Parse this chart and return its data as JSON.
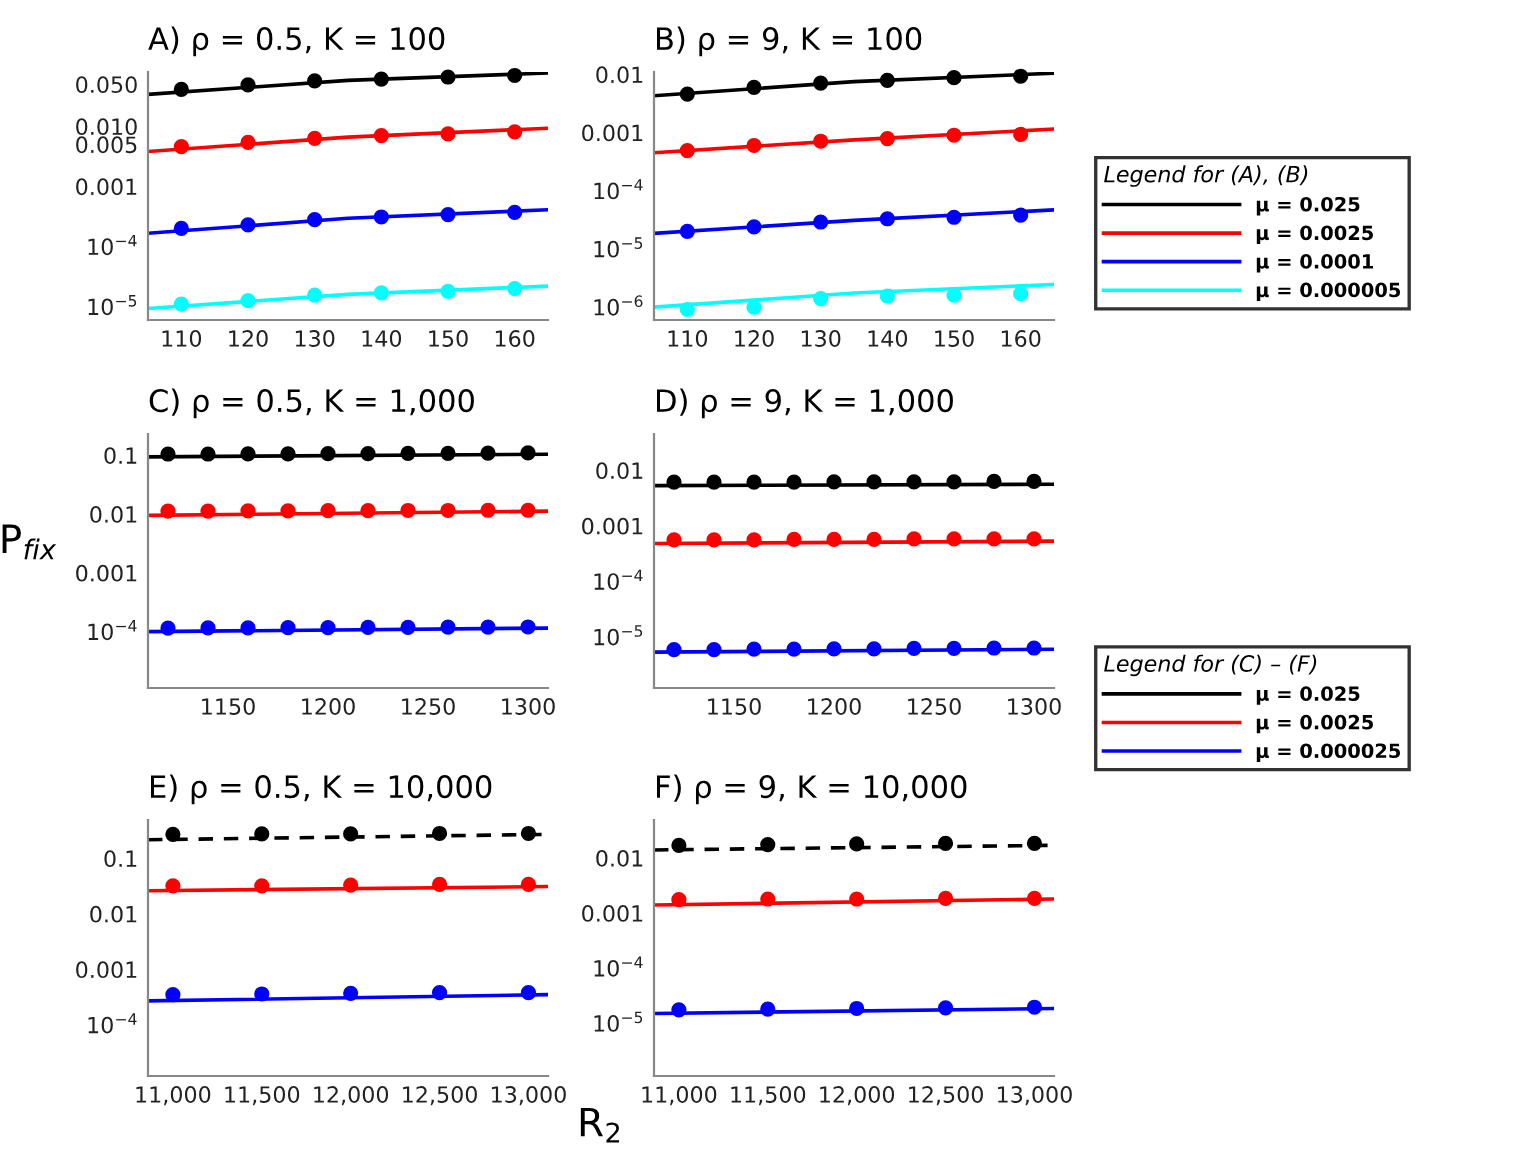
{
  "chart_data": [
    {
      "type": "line",
      "title": "A) ρ = 0.5, K = 100",
      "log": "y",
      "grid": false,
      "legend": false,
      "x": [
        110,
        120,
        130,
        140,
        150,
        160
      ],
      "xlim": [
        105,
        165
      ],
      "xticks": [
        110,
        120,
        130,
        140,
        150,
        160
      ],
      "ylim": [
        6e-06,
        0.08
      ],
      "yticks": [
        {
          "value": 0.05,
          "label": "0.050"
        },
        {
          "value": 0.01,
          "label": "0.010"
        },
        {
          "value": 0.005,
          "label": "0.005"
        },
        {
          "value": 0.001,
          "label": "0.001"
        },
        {
          "value": 0.0001,
          "label": "10$^{−4}$"
        },
        {
          "value": 1e-05,
          "label": "10$^{−5}$"
        }
      ],
      "series": [
        {
          "type": "scatter",
          "marker": "circle",
          "color": "#000000",
          "values": [
            0.041,
            0.049,
            0.057,
            0.061,
            0.066,
            0.07
          ]
        },
        {
          "color": "#000000",
          "x": [
            105,
            135,
            165
          ],
          "values": [
            0.034,
            0.058,
            0.077
          ]
        },
        {
          "type": "scatter",
          "marker": "circle",
          "color": "#ff0000",
          "values": [
            0.0046,
            0.0054,
            0.0063,
            0.007,
            0.0075,
            0.0081
          ]
        },
        {
          "color": "#ff0000",
          "x": [
            105,
            135,
            165
          ],
          "values": [
            0.0038,
            0.0066,
            0.0093
          ]
        },
        {
          "type": "scatter",
          "marker": "circle",
          "color": "#0000ff",
          "values": [
            0.0002,
            0.00023,
            0.00028,
            0.00031,
            0.00034,
            0.00037
          ]
        },
        {
          "color": "#0000ff",
          "x": [
            105,
            135,
            165
          ],
          "values": [
            0.000166,
            0.000295,
            0.00041
          ]
        },
        {
          "type": "scatter",
          "marker": "circle",
          "color": "#00ffff",
          "values": [
            1.1e-05,
            1.26e-05,
            1.55e-05,
            1.7e-05,
            1.8e-05,
            2e-05
          ]
        },
        {
          "color": "#00ffff",
          "x": [
            105,
            135,
            165
          ],
          "values": [
            9.3e-06,
            1.6e-05,
            2.2e-05
          ]
        }
      ]
    },
    {
      "type": "line",
      "title": "B) ρ = 9, K = 100",
      "log": "y",
      "grid": false,
      "legend": "right",
      "legend_title": "Legend for (A), (B)",
      "x": [
        110,
        120,
        130,
        140,
        150,
        160
      ],
      "xlim": [
        105,
        165
      ],
      "xticks": [
        110,
        120,
        130,
        140,
        150,
        160
      ],
      "ylim": [
        6e-07,
        0.011
      ],
      "yticks": [
        {
          "value": 0.01,
          "label": "0.01"
        },
        {
          "value": 0.001,
          "label": "0.001"
        },
        {
          "value": 0.0001,
          "label": "10$^{−4}$"
        },
        {
          "value": 1e-05,
          "label": "10$^{−5}$"
        },
        {
          "value": 1e-06,
          "label": "10$^{−6}$"
        }
      ],
      "series": [
        {
          "type": "scatter",
          "marker": "circle",
          "color": "#000000",
          "values": [
            0.0046,
            0.006,
            0.0071,
            0.0079,
            0.0088,
            0.0093
          ]
        },
        {
          "name": "μ = 0.025",
          "color": "#000000",
          "x": [
            105,
            135,
            165
          ],
          "values": [
            0.0043,
            0.0075,
            0.0105
          ]
        },
        {
          "type": "scatter",
          "marker": "circle",
          "color": "#ff0000",
          "values": [
            0.00049,
            0.0006,
            0.00071,
            0.00079,
            0.0009,
            0.00093
          ]
        },
        {
          "name": "μ = 0.0025",
          "color": "#ff0000",
          "x": [
            105,
            135,
            165
          ],
          "values": [
            0.00045,
            0.00075,
            0.00115
          ]
        },
        {
          "type": "scatter",
          "marker": "circle",
          "color": "#0000ff",
          "values": [
            2e-05,
            2.4e-05,
            2.9e-05,
            3.3e-05,
            3.5e-05,
            3.8e-05
          ]
        },
        {
          "name": "μ = 0.0001",
          "color": "#0000ff",
          "x": [
            105,
            135,
            165
          ],
          "values": [
            1.85e-05,
            3.1e-05,
            4.7e-05
          ]
        },
        {
          "type": "scatter",
          "marker": "circle",
          "color": "#00ffff",
          "values": [
            9.1e-07,
            1e-06,
            1.4e-06,
            1.55e-06,
            1.6e-06,
            1.7e-06
          ]
        },
        {
          "name": "μ = 0.000005",
          "color": "#00ffff",
          "x": [
            105,
            135,
            165
          ],
          "values": [
            1e-06,
            1.75e-06,
            2.45e-06
          ]
        }
      ]
    },
    {
      "type": "line",
      "title": "C) ρ = 0.5, K = 1,000",
      "ylabel": "P$_{fix}$",
      "log": "y",
      "grid": false,
      "legend": false,
      "x": [
        1120,
        1140,
        1160,
        1180,
        1200,
        1220,
        1240,
        1260,
        1280,
        1300
      ],
      "xlim": [
        1110,
        1310
      ],
      "xticks": [
        1150,
        1200,
        1250,
        1300
      ],
      "ylim": [
        1.1e-05,
        0.23
      ],
      "yticks": [
        {
          "value": 0.1,
          "label": "0.1"
        },
        {
          "value": 0.01,
          "label": "0.01"
        },
        {
          "value": 0.001,
          "label": "0.001"
        },
        {
          "value": 0.0001,
          "label": "10$^{−4}$"
        }
      ],
      "series": [
        {
          "type": "scatter",
          "marker": "circle",
          "color": "#000000",
          "values": [
            0.105,
            0.105,
            0.106,
            0.106,
            0.107,
            0.107,
            0.108,
            0.108,
            0.109,
            0.11
          ]
        },
        {
          "color": "#000000",
          "x": [
            1110,
            1310
          ],
          "values": [
            0.094,
            0.104
          ]
        },
        {
          "type": "scatter",
          "marker": "circle",
          "color": "#ff0000",
          "values": [
            0.0112,
            0.0112,
            0.0113,
            0.0113,
            0.0114,
            0.0114,
            0.0115,
            0.0115,
            0.0116,
            0.0116
          ]
        },
        {
          "color": "#ff0000",
          "x": [
            1110,
            1310
          ],
          "values": [
            0.0095,
            0.0112
          ]
        },
        {
          "type": "scatter",
          "marker": "circle",
          "color": "#0000ff",
          "values": [
            0.000115,
            0.000116,
            0.000116,
            0.000117,
            0.000117,
            0.000118,
            0.000118,
            0.000119,
            0.000119,
            0.00012
          ]
        },
        {
          "color": "#0000ff",
          "x": [
            1110,
            1310
          ],
          "values": [
            0.0001,
            0.000115
          ]
        }
      ]
    },
    {
      "type": "line",
      "title": "D) ρ = 9, K = 1,000",
      "log": "y",
      "grid": false,
      "legend": "bottom right",
      "legend_title": "Legend for (C) – (F)",
      "x": [
        1120,
        1140,
        1160,
        1180,
        1200,
        1220,
        1240,
        1260,
        1280,
        1300
      ],
      "xlim": [
        1110,
        1310
      ],
      "xticks": [
        1150,
        1200,
        1250,
        1300
      ],
      "ylim": [
        1.2e-06,
        0.045
      ],
      "yticks": [
        {
          "value": 0.01,
          "label": "0.01"
        },
        {
          "value": 0.001,
          "label": "0.001"
        },
        {
          "value": 0.0001,
          "label": "10$^{−4}$"
        },
        {
          "value": 1e-05,
          "label": "10$^{−5}$"
        }
      ],
      "series": [
        {
          "type": "scatter",
          "marker": "circle",
          "color": "#000000",
          "values": [
            0.0061,
            0.0061,
            0.0061,
            0.0061,
            0.0062,
            0.0062,
            0.0062,
            0.0062,
            0.0063,
            0.0063
          ]
        },
        {
          "name": "μ = 0.025",
          "color": "#000000",
          "x": [
            1110,
            1310
          ],
          "values": [
            0.0053,
            0.0056
          ]
        },
        {
          "type": "scatter",
          "marker": "circle",
          "color": "#ff0000",
          "values": [
            0.00056,
            0.00056,
            0.00056,
            0.00057,
            0.00057,
            0.00057,
            0.00058,
            0.00058,
            0.00058,
            0.00058
          ]
        },
        {
          "name": "μ = 0.0025",
          "color": "#ff0000",
          "x": [
            1110,
            1310
          ],
          "values": [
            0.00048,
            0.00053
          ]
        },
        {
          "type": "scatter",
          "marker": "circle",
          "color": "#0000ff",
          "values": [
            5.9e-06,
            5.9e-06,
            6e-06,
            6e-06,
            6.1e-06,
            6.1e-06,
            6.2e-06,
            6.2e-06,
            6.3e-06,
            6.3e-06
          ]
        },
        {
          "name": "μ = 0.000025",
          "color": "#0000ff",
          "x": [
            1110,
            1310
          ],
          "values": [
            5.3e-06,
            6e-06
          ]
        }
      ]
    },
    {
      "type": "line",
      "title": "E) ρ = 0.5, K = 10,000",
      "xlabel": "R$_{2}$",
      "log": "y",
      "grid": false,
      "legend": false,
      "x": [
        11000,
        11500,
        12000,
        12500,
        13000
      ],
      "xlim": [
        10860,
        13110
      ],
      "xticks": [
        {
          "value": 11000,
          "label": "11,000"
        },
        {
          "value": 11500,
          "label": "11,500"
        },
        {
          "value": 12000,
          "label": "12,000"
        },
        {
          "value": 12500,
          "label": "12,500"
        },
        {
          "value": 13000,
          "label": "13,000"
        }
      ],
      "ylim": [
        1.2e-05,
        0.49
      ],
      "yticks": [
        {
          "value": 0.1,
          "label": "0.1"
        },
        {
          "value": 0.01,
          "label": "0.01"
        },
        {
          "value": 0.001,
          "label": "0.001"
        },
        {
          "value": 0.0001,
          "label": "10$^{−4}$"
        }
      ],
      "series": [
        {
          "type": "scatter",
          "marker": "circle",
          "color": "#000000",
          "values": [
            0.27,
            0.275,
            0.275,
            0.28,
            0.28
          ]
        },
        {
          "color": "#000000",
          "line_style": "dashed",
          "x": [
            10860,
            13110
          ],
          "values": [
            0.216,
            0.27
          ]
        },
        {
          "type": "scatter",
          "marker": "circle",
          "color": "#ff0000",
          "values": [
            0.032,
            0.032,
            0.033,
            0.034,
            0.034
          ]
        },
        {
          "color": "#ff0000",
          "x": [
            10860,
            13110
          ],
          "values": [
            0.026,
            0.031
          ]
        },
        {
          "type": "scatter",
          "marker": "circle",
          "color": "#0000ff",
          "values": [
            0.00035,
            0.00036,
            0.00037,
            0.00038,
            0.00038
          ]
        },
        {
          "color": "#0000ff",
          "x": [
            10860,
            13110
          ],
          "values": [
            0.00027,
            0.00035
          ]
        }
      ]
    },
    {
      "type": "line",
      "title": "F) ρ = 9, K = 10,000",
      "log": "y",
      "grid": false,
      "legend": false,
      "x": [
        11000,
        11500,
        12000,
        12500,
        13000
      ],
      "xlim": [
        10860,
        13110
      ],
      "xticks": [
        {
          "value": 11000,
          "label": "11,000"
        },
        {
          "value": 11500,
          "label": "11,500"
        },
        {
          "value": 12000,
          "label": "12,000"
        },
        {
          "value": 12500,
          "label": "12,500"
        },
        {
          "value": 13000,
          "label": "13,000"
        }
      ],
      "ylim": [
        1.1e-06,
        0.049
      ],
      "yticks": [
        {
          "value": 0.01,
          "label": "0.01"
        },
        {
          "value": 0.001,
          "label": "0.001"
        },
        {
          "value": 0.0001,
          "label": "10$^{−4}$"
        },
        {
          "value": 1e-05,
          "label": "10$^{−5}$"
        }
      ],
      "series": [
        {
          "type": "scatter",
          "marker": "circle",
          "color": "#000000",
          "values": [
            0.017,
            0.0175,
            0.018,
            0.0185,
            0.0185
          ]
        },
        {
          "color": "#000000",
          "line_style": "dashed",
          "x": [
            10860,
            13110
          ],
          "values": [
            0.014,
            0.017
          ]
        },
        {
          "type": "scatter",
          "marker": "circle",
          "color": "#ff0000",
          "values": [
            0.00175,
            0.0018,
            0.0018,
            0.00185,
            0.00185
          ]
        },
        {
          "color": "#ff0000",
          "x": [
            10860,
            13110
          ],
          "values": [
            0.0014,
            0.0018
          ]
        },
        {
          "type": "scatter",
          "marker": "circle",
          "color": "#0000ff",
          "values": [
            1.75e-05,
            1.8e-05,
            1.85e-05,
            1.9e-05,
            1.95e-05
          ]
        },
        {
          "color": "#0000ff",
          "x": [
            10860,
            13110
          ],
          "values": [
            1.5e-05,
            1.85e-05
          ]
        }
      ]
    }
  ]
}
